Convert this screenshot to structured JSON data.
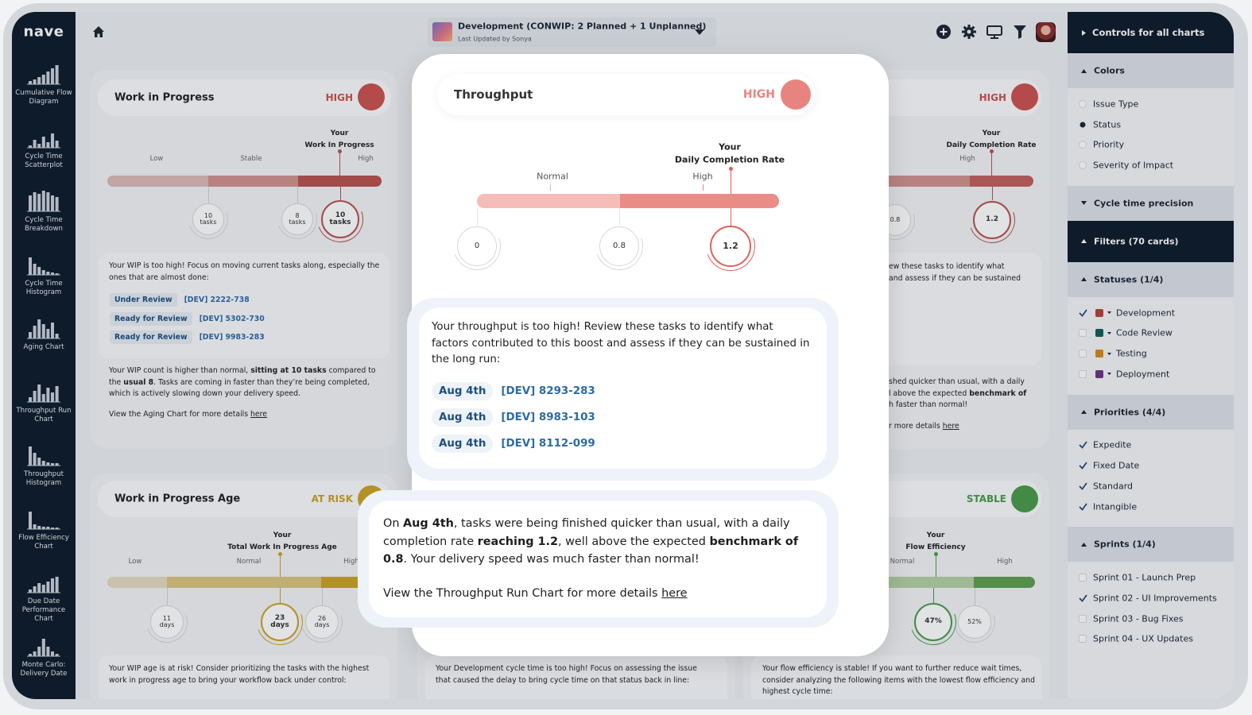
{
  "sidebar": {
    "logo": "nave",
    "items": [
      "Cumulative Flow Diagram",
      "Cycle Time Scatterplot",
      "Cycle Time Breakdown",
      "Cycle Time Histogram",
      "Aging Chart",
      "Throughput Run Chart",
      "Throughput Histogram",
      "Flow Efficiency Chart",
      "Due Date Performance Chart",
      "Monte Carlo: Delivery Date"
    ]
  },
  "topbar": {
    "board": "Development (CONWIP: 2 Planned + 1 Unplanned)",
    "updated": "Last Updated by Sonya"
  },
  "controls": {
    "header": "Controls for all charts",
    "sections": [
      {
        "title": "Colors",
        "expanded": true,
        "input": "radio",
        "options": [
          {
            "label": "Issue Type",
            "checked": false
          },
          {
            "label": "Status",
            "checked": true
          },
          {
            "label": "Priority",
            "checked": false
          },
          {
            "label": "Severity of Impact",
            "checked": false
          }
        ]
      },
      {
        "title": "Cycle time precision",
        "expanded": false
      },
      {
        "title": "Filters (70 cards)",
        "expanded": true,
        "dark": true
      },
      {
        "title": "Statuses (1/4)",
        "expanded": true,
        "input": "checkbox",
        "options": [
          {
            "label": "Development",
            "checked": true,
            "color": "#b8403b"
          },
          {
            "label": "Code Review",
            "checked": false,
            "color": "#0f5f55"
          },
          {
            "label": "Testing",
            "checked": false,
            "color": "#d58a17"
          },
          {
            "label": "Deployment",
            "checked": false,
            "color": "#6c3483"
          }
        ]
      },
      {
        "title": "Priorities (4/4)",
        "expanded": true,
        "input": "checkbox",
        "options": [
          {
            "label": "Expedite",
            "checked": true
          },
          {
            "label": "Fixed Date",
            "checked": true
          },
          {
            "label": "Standard",
            "checked": true
          },
          {
            "label": "Intangible",
            "checked": true
          }
        ]
      },
      {
        "title": "Sprints (1/4)",
        "expanded": true,
        "input": "checkbox",
        "options": [
          {
            "label": "Sprint 01 - Launch Prep",
            "checked": false
          },
          {
            "label": "Sprint 02 - UI Improvements",
            "checked": true
          },
          {
            "label": "Sprint 03 - Bug Fixes",
            "checked": false
          },
          {
            "label": "Sprint 04 - UX Updates",
            "checked": false
          }
        ]
      }
    ]
  },
  "cards": [
    {
      "title": "Work in Progress",
      "status": "HIGH",
      "color": "#c9524d",
      "marker": [
        "Your",
        "Work In Progress"
      ],
      "scale": [
        "Low",
        "Stable",
        "High"
      ],
      "circles": [
        "10 tasks",
        "8 tasks",
        "10 tasks"
      ],
      "intro": "Your WIP is too high! Focus on moving current tasks along, especially the ones that are almost done:",
      "links": [
        {
          "tag": "Under Review",
          "id": "[DEV] 2222-738"
        },
        {
          "tag": "Ready for Review",
          "id": "[DEV] 5302-730"
        },
        {
          "tag": "Ready for Review",
          "id": "[DEV] 9983-283"
        }
      ],
      "body": [
        {
          "text": "Your WIP count is higher than normal, "
        },
        {
          "text": "sitting at 10 tasks",
          "bold": true
        },
        {
          "text": " compared to the "
        },
        {
          "text": "usual 8",
          "bold": true
        },
        {
          "text": ". Tasks are coming in faster than they’re being completed, which is actively slowing down your delivery speed."
        }
      ],
      "footer": [
        {
          "text": "View the Aging Chart for more details "
        },
        {
          "text": "here",
          "link": true
        }
      ]
    },
    {
      "status": "HIGH",
      "color": "#c9524d",
      "marker": [
        "Your",
        "Daily Completion Rate"
      ],
      "scale": [
        "High"
      ],
      "circles": [
        "0.8",
        "1.2"
      ],
      "intro_lines": [
        "ew these tasks to identify what",
        "and assess if they can be sustained"
      ],
      "body_lines": [
        [
          {
            "text": "shed quicker than usual, with a daily"
          }
        ],
        [
          {
            "text": "l above the expected "
          },
          {
            "text": "benchmark of",
            "bold": true
          }
        ],
        [
          {
            "text": "h faster than normal!"
          }
        ]
      ],
      "footer": [
        {
          "text": "r more details "
        },
        {
          "text": "here",
          "link": true
        }
      ]
    },
    {
      "title": "Work in Progress Age",
      "status": "AT RISK",
      "color": "#c9a227",
      "marker": [
        "Your",
        "Total Work In Progress Age"
      ],
      "scale": [
        "Low",
        "Normal",
        "High"
      ],
      "circles": [
        "11 days",
        "23 days",
        "26 days"
      ],
      "intro": "Your WIP age is at risk! Consider prioritizing the tasks with the highest work in progress age to bring your workflow back under control:"
    },
    {
      "intro": "Your Development cycle time is too high! Focus on assessing the issue that caused the delay to bring cycle time on that status back in line:"
    },
    {
      "status": "STABLE",
      "color": "#4a9a4a",
      "marker": [
        "Your",
        "Flow Efficiency"
      ],
      "scale": [
        "Normal",
        "High"
      ],
      "circles": [
        "47%",
        "52%"
      ],
      "intro": "Your flow efficiency is stable! If you want to further reduce wait times, consider analyzing the following items with the lowest flow efficiency and highest cycle time:"
    }
  ],
  "popup": {
    "title": "Throughput",
    "status": "HIGH",
    "color": "#e8847f",
    "marker": [
      "Your",
      "Daily Completion Rate"
    ],
    "scale": [
      "Normal",
      "High"
    ],
    "circles": [
      "0",
      "0.8",
      "1.2"
    ],
    "summary": "Your throughput is too high! Review these tasks to identify what factors contributed to this boost and assess if they can be sustained in the long run:",
    "links": [
      {
        "date": "Aug 4th",
        "id": "[DEV] 8293-283"
      },
      {
        "date": "Aug 4th",
        "id": "[DEV] 8983-103"
      },
      {
        "date": "Aug 4th",
        "id": "[DEV] 8112-099"
      }
    ],
    "detail": [
      {
        "text": "On "
      },
      {
        "text": "Aug 4th",
        "bold": true
      },
      {
        "text": ", tasks were being finished quicker than usual, with a daily completion rate "
      },
      {
        "text": "reaching 1.2",
        "bold": true
      },
      {
        "text": ", well above the expected "
      },
      {
        "text": "benchmark of 0.8",
        "bold": true
      },
      {
        "text": ". Your delivery speed was much faster than normal!"
      }
    ],
    "footer": [
      {
        "text": "View the Throughput Run Chart for more details "
      },
      {
        "text": "here",
        "link": true
      }
    ]
  }
}
